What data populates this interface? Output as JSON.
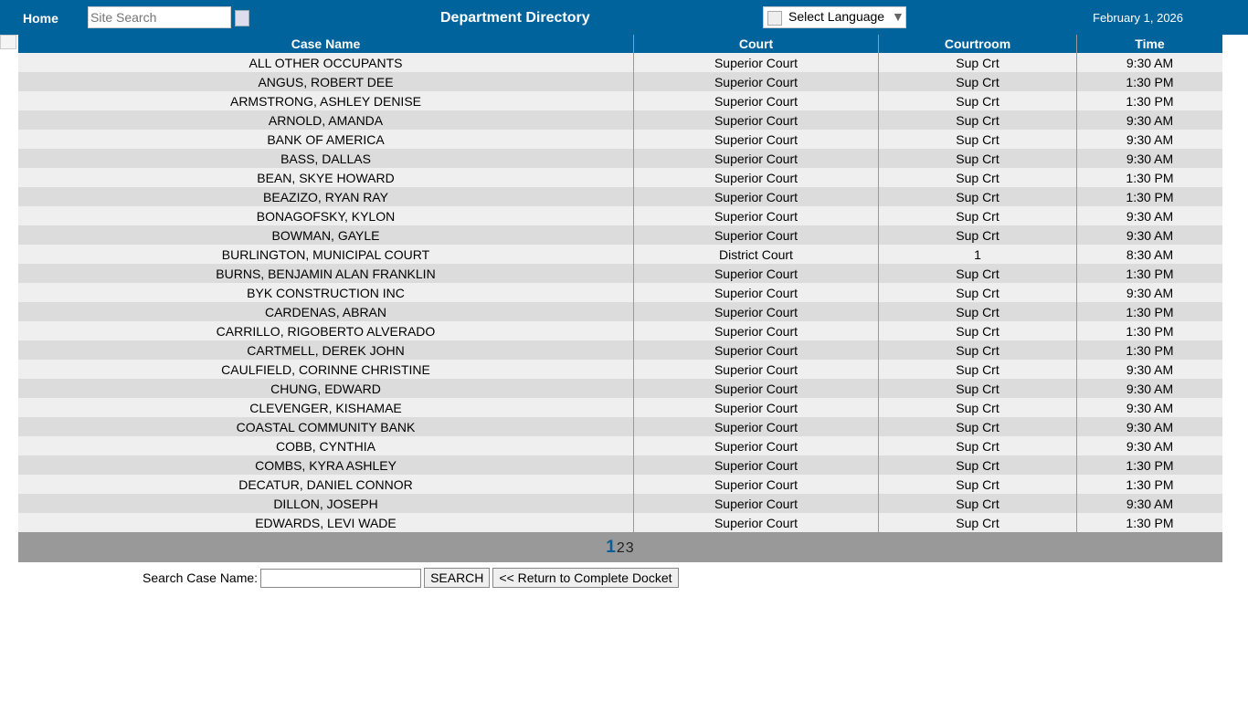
{
  "header": {
    "home": "Home",
    "search_placeholder": "Site Search",
    "title": "Department Directory",
    "language": "Select Language",
    "language_arrow": "▼",
    "date": "February 1, 2026"
  },
  "table": {
    "columns": [
      "Case Name",
      "Court",
      "Courtroom",
      "Time"
    ],
    "rows": [
      [
        "ALL OTHER OCCUPANTS",
        "Superior Court",
        "Sup Crt",
        "9:30 AM"
      ],
      [
        "ANGUS, ROBERT DEE",
        "Superior Court",
        "Sup Crt",
        "1:30 PM"
      ],
      [
        "ARMSTRONG, ASHLEY DENISE",
        "Superior Court",
        "Sup Crt",
        "1:30 PM"
      ],
      [
        "ARNOLD, AMANDA",
        "Superior Court",
        "Sup Crt",
        "9:30 AM"
      ],
      [
        "BANK OF AMERICA",
        "Superior Court",
        "Sup Crt",
        "9:30 AM"
      ],
      [
        "BASS, DALLAS",
        "Superior Court",
        "Sup Crt",
        "9:30 AM"
      ],
      [
        "BEAN, SKYE HOWARD",
        "Superior Court",
        "Sup Crt",
        "1:30 PM"
      ],
      [
        "BEAZIZO, RYAN RAY",
        "Superior Court",
        "Sup Crt",
        "1:30 PM"
      ],
      [
        "BONAGOFSKY, KYLON",
        "Superior Court",
        "Sup Crt",
        "9:30 AM"
      ],
      [
        "BOWMAN, GAYLE",
        "Superior Court",
        "Sup Crt",
        "9:30 AM"
      ],
      [
        "BURLINGTON, MUNICIPAL COURT",
        "District Court",
        "1",
        "8:30 AM"
      ],
      [
        "BURNS, BENJAMIN ALAN FRANKLIN",
        "Superior Court",
        "Sup Crt",
        "1:30 PM"
      ],
      [
        "BYK CONSTRUCTION INC",
        "Superior Court",
        "Sup Crt",
        "9:30 AM"
      ],
      [
        "CARDENAS, ABRAN",
        "Superior Court",
        "Sup Crt",
        "1:30 PM"
      ],
      [
        "CARRILLO, RIGOBERTO ALVERADO",
        "Superior Court",
        "Sup Crt",
        "1:30 PM"
      ],
      [
        "CARTMELL, DEREK JOHN",
        "Superior Court",
        "Sup Crt",
        "1:30 PM"
      ],
      [
        "CAULFIELD, CORINNE CHRISTINE",
        "Superior Court",
        "Sup Crt",
        "9:30 AM"
      ],
      [
        "CHUNG, EDWARD",
        "Superior Court",
        "Sup Crt",
        "9:30 AM"
      ],
      [
        "CLEVENGER, KISHAMAE",
        "Superior Court",
        "Sup Crt",
        "9:30 AM"
      ],
      [
        "COASTAL COMMUNITY BANK",
        "Superior Court",
        "Sup Crt",
        "9:30 AM"
      ],
      [
        "COBB, CYNTHIA",
        "Superior Court",
        "Sup Crt",
        "9:30 AM"
      ],
      [
        "COMBS, KYRA ASHLEY",
        "Superior Court",
        "Sup Crt",
        "1:30 PM"
      ],
      [
        "DECATUR, DANIEL CONNOR",
        "Superior Court",
        "Sup Crt",
        "1:30 PM"
      ],
      [
        "DILLON, JOSEPH",
        "Superior Court",
        "Sup Crt",
        "9:30 AM"
      ],
      [
        "EDWARDS, LEVI WADE",
        "Superior Court",
        "Sup Crt",
        "1:30 PM"
      ]
    ]
  },
  "pager": {
    "current": "1",
    "pages": [
      "2",
      "3"
    ]
  },
  "form": {
    "label": "Search Case Name:",
    "value": "",
    "search": "SEARCH",
    "return": "<< Return to Complete Docket"
  }
}
